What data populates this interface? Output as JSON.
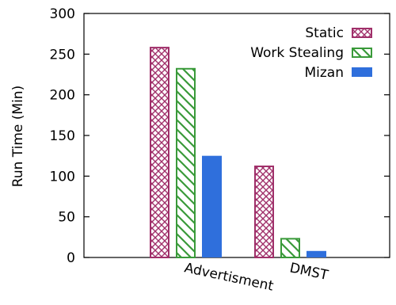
{
  "chart_data": {
    "type": "bar",
    "title": "",
    "xlabel": "",
    "ylabel": "Run Time (Min)",
    "ylim": [
      0,
      300
    ],
    "yticks": [
      0,
      50,
      100,
      150,
      200,
      250,
      300
    ],
    "categories": [
      "Advertisment",
      "DMST"
    ],
    "grid": false,
    "legend_position": "top-right",
    "series": [
      {
        "name": "Static",
        "values": [
          259,
          113
        ],
        "color": "#a0306a",
        "pattern": "crosshatch"
      },
      {
        "name": "Work Stealing",
        "values": [
          233,
          24
        ],
        "color": "#3a9a3a",
        "pattern": "diagonal"
      },
      {
        "name": "Mizan",
        "values": [
          125,
          8
        ],
        "color": "#2f6fdc",
        "pattern": "solid"
      }
    ]
  }
}
